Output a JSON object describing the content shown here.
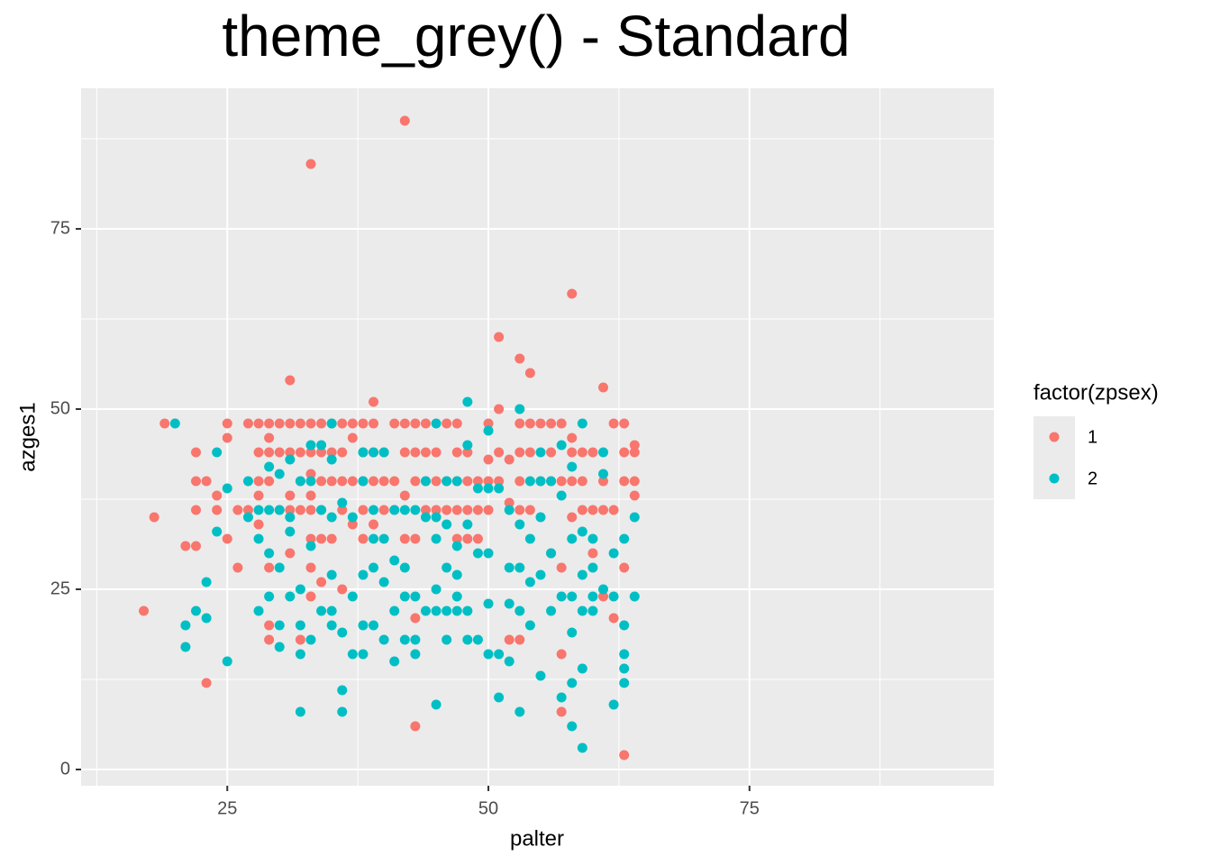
{
  "chart_data": {
    "type": "scatter",
    "title": "theme_grey() - Standard",
    "x_label": "palter",
    "y_label": "azges1",
    "legend_title": "factor(zpsex)",
    "legend_position": "right",
    "xlim": [
      11,
      98.4
    ],
    "ylim": [
      -2.25,
      94.5
    ],
    "xticks": [
      25,
      50,
      75
    ],
    "yticks": [
      0,
      25,
      50,
      75
    ],
    "x_minor_breaks": [
      12.5,
      37.5,
      62.5,
      87.5
    ],
    "y_minor_breaks": [
      12.5,
      37.5,
      62.5,
      87.5
    ],
    "grid": true,
    "series": [
      {
        "name": "1",
        "color": "#F8766D",
        "x": [
          17,
          18,
          19,
          21,
          22,
          22,
          22,
          22,
          23,
          23,
          24,
          24,
          25,
          25,
          25,
          26,
          26,
          27,
          27,
          28,
          28,
          28,
          28,
          28,
          29,
          29,
          29,
          29,
          29,
          29,
          29,
          30,
          30,
          30,
          31,
          31,
          31,
          31,
          31,
          31,
          32,
          32,
          32,
          32,
          32,
          33,
          33,
          33,
          33,
          33,
          33,
          33,
          33,
          33,
          34,
          34,
          34,
          34,
          34,
          34,
          35,
          35,
          35,
          35,
          36,
          36,
          36,
          36,
          36,
          37,
          37,
          37,
          37,
          38,
          38,
          38,
          38,
          38,
          39,
          39,
          39,
          39,
          39,
          40,
          40,
          40,
          41,
          41,
          41,
          42,
          42,
          42,
          42,
          42,
          43,
          43,
          43,
          43,
          43,
          43,
          44,
          44,
          44,
          44,
          45,
          45,
          45,
          46,
          46,
          46,
          47,
          47,
          47,
          47,
          47,
          48,
          48,
          48,
          48,
          49,
          49,
          49,
          50,
          50,
          50,
          50,
          51,
          51,
          51,
          51,
          52,
          52,
          52,
          53,
          53,
          53,
          53,
          53,
          53,
          54,
          54,
          54,
          54,
          55,
          55,
          56,
          56,
          56,
          56,
          57,
          57,
          57,
          57,
          57,
          58,
          58,
          58,
          58,
          58,
          59,
          59,
          59,
          60,
          60,
          60,
          61,
          61,
          61,
          61,
          62,
          62,
          62,
          63,
          63,
          63,
          63,
          63,
          64,
          64,
          64,
          64
        ],
        "values": [
          22,
          35,
          48,
          31,
          31,
          40,
          44,
          36,
          40,
          12,
          38,
          36,
          48,
          46,
          32,
          36,
          28,
          48,
          36,
          48,
          44,
          40,
          38,
          34,
          48,
          46,
          44,
          40,
          28,
          20,
          18,
          48,
          44,
          36,
          54,
          48,
          44,
          38,
          36,
          30,
          48,
          44,
          40,
          36,
          18,
          84,
          48,
          44,
          41,
          38,
          36,
          32,
          28,
          24,
          48,
          44,
          40,
          36,
          32,
          26,
          48,
          44,
          40,
          32,
          48,
          44,
          40,
          36,
          25,
          48,
          46,
          40,
          34,
          48,
          44,
          40,
          36,
          32,
          51,
          48,
          44,
          40,
          34,
          44,
          40,
          36,
          48,
          40,
          36,
          90,
          48,
          44,
          38,
          32,
          48,
          44,
          40,
          32,
          21,
          6,
          48,
          44,
          40,
          36,
          44,
          40,
          36,
          48,
          40,
          36,
          48,
          44,
          40,
          36,
          32,
          44,
          40,
          36,
          32,
          40,
          36,
          32,
          48,
          43,
          40,
          36,
          60,
          50,
          44,
          40,
          43,
          37,
          18,
          57,
          48,
          44,
          40,
          36,
          18,
          55,
          48,
          44,
          36,
          48,
          40,
          48,
          44,
          40,
          30,
          48,
          40,
          28,
          16,
          8,
          66,
          46,
          44,
          40,
          35,
          44,
          40,
          36,
          44,
          36,
          30,
          53,
          40,
          36,
          24,
          48,
          36,
          21,
          48,
          44,
          40,
          28,
          2,
          45,
          44,
          40,
          38
        ]
      },
      {
        "name": "2",
        "color": "#00BFC4",
        "x": [
          20,
          21,
          21,
          22,
          23,
          23,
          24,
          24,
          25,
          25,
          27,
          27,
          28,
          28,
          28,
          29,
          29,
          29,
          29,
          30,
          30,
          30,
          30,
          30,
          31,
          31,
          31,
          31,
          32,
          32,
          32,
          32,
          32,
          33,
          33,
          33,
          33,
          34,
          34,
          34,
          35,
          35,
          35,
          35,
          35,
          35,
          36,
          36,
          36,
          36,
          37,
          37,
          37,
          38,
          38,
          38,
          38,
          38,
          39,
          39,
          39,
          39,
          39,
          40,
          40,
          40,
          40,
          41,
          41,
          41,
          41,
          42,
          42,
          42,
          42,
          43,
          43,
          43,
          43,
          44,
          44,
          44,
          45,
          45,
          45,
          45,
          45,
          45,
          46,
          46,
          46,
          46,
          46,
          47,
          47,
          47,
          47,
          47,
          48,
          48,
          48,
          48,
          48,
          49,
          49,
          49,
          50,
          50,
          50,
          50,
          50,
          51,
          51,
          51,
          52,
          52,
          52,
          52,
          53,
          53,
          53,
          53,
          53,
          54,
          54,
          54,
          54,
          55,
          55,
          55,
          55,
          55,
          56,
          56,
          56,
          57,
          57,
          57,
          57,
          58,
          58,
          58,
          58,
          58,
          58,
          59,
          59,
          59,
          59,
          59,
          59,
          60,
          60,
          60,
          60,
          61,
          61,
          61,
          62,
          62,
          62,
          63,
          63,
          63,
          63,
          63,
          64,
          64
        ],
        "values": [
          48,
          20,
          17,
          22,
          26,
          21,
          44,
          33,
          39,
          15,
          40,
          35,
          36,
          32,
          22,
          42,
          36,
          30,
          24,
          41,
          36,
          28,
          20,
          17,
          43,
          35,
          24,
          33,
          40,
          25,
          20,
          16,
          8,
          45,
          40,
          31,
          18,
          45,
          36,
          22,
          48,
          43,
          35,
          27,
          22,
          20,
          37,
          19,
          11,
          8,
          35,
          24,
          16,
          44,
          40,
          27,
          20,
          16,
          44,
          36,
          32,
          28,
          20,
          44,
          32,
          26,
          18,
          36,
          29,
          22,
          15,
          36,
          28,
          24,
          18,
          36,
          24,
          18,
          16,
          40,
          35,
          22,
          48,
          35,
          32,
          25,
          22,
          9,
          40,
          34,
          28,
          22,
          18,
          40,
          31,
          27,
          24,
          22,
          51,
          45,
          34,
          22,
          18,
          39,
          30,
          18,
          47,
          39,
          30,
          23,
          16,
          39,
          16,
          10,
          36,
          28,
          23,
          15,
          50,
          34,
          28,
          22,
          8,
          40,
          32,
          26,
          20,
          44,
          40,
          35,
          27,
          13,
          40,
          30,
          22,
          45,
          38,
          24,
          10,
          42,
          32,
          24,
          19,
          12,
          6,
          48,
          33,
          27,
          22,
          14,
          3,
          32,
          28,
          24,
          22,
          44,
          41,
          25,
          30,
          24,
          9,
          32,
          20,
          16,
          14,
          12,
          35,
          24
        ]
      }
    ]
  }
}
